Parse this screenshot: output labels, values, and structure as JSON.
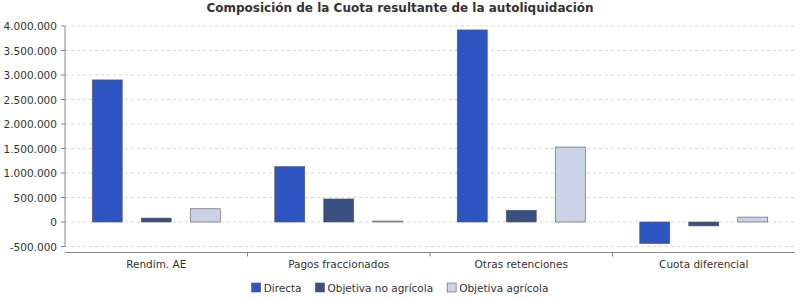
{
  "chart_data": {
    "type": "bar",
    "title": "Composición de la Cuota resultante de la autoliquidación",
    "categories": [
      "Rendim. AE",
      "Pagos fraccionados",
      "Otras retenciones",
      "Cuota diferencial"
    ],
    "series": [
      {
        "name": "Directa",
        "color": "#2e56c3",
        "values": [
          2900000,
          1130000,
          3920000,
          -440000
        ]
      },
      {
        "name": "Objetiva no agrícola",
        "color": "#3b5082",
        "values": [
          80000,
          470000,
          240000,
          -80000
        ]
      },
      {
        "name": "Objetiva agrícola",
        "color": "#ccd3e8",
        "values": [
          270000,
          20000,
          1530000,
          100000
        ]
      }
    ],
    "ylim": [
      -500000,
      4000000
    ],
    "yticks": [
      {
        "value": -500000,
        "label": "-500.000"
      },
      0,
      {
        "value": 500000,
        "label": "500.000"
      },
      {
        "value": 1000000,
        "label": "1.000.000"
      },
      {
        "value": 1500000,
        "label": "1.500.000"
      },
      {
        "value": 2000000,
        "label": "2.000.000"
      },
      {
        "value": 2500000,
        "label": "2.500.000"
      },
      {
        "value": 3000000,
        "label": "3.000.000"
      },
      {
        "value": 3500000,
        "label": "3.500.000"
      },
      {
        "value": 4000000,
        "label": "4.000.000"
      }
    ],
    "grid": true,
    "legend": "bottom"
  }
}
